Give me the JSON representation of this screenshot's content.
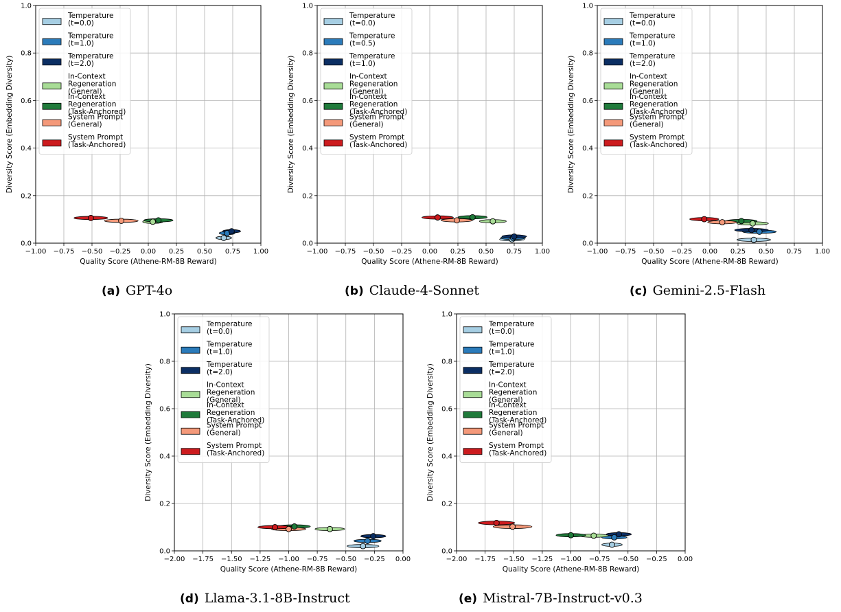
{
  "colors": {
    "temp_low": "#a6cee3",
    "temp_mid": "#2b7bba",
    "temp_high": "#0b2e63",
    "icr_general": "#a8dc96",
    "icr_task": "#1f7a3a",
    "sp_general": "#f4997a",
    "sp_task": "#cc1b1e"
  },
  "captions": [
    {
      "label": "(a)",
      "text": "GPT-4o"
    },
    {
      "label": "(b)",
      "text": "Claude-4-Sonnet"
    },
    {
      "label": "(c)",
      "text": "Gemini-2.5-Flash"
    },
    {
      "label": "(d)",
      "text": "Llama-3.1-8B-Instruct"
    },
    {
      "label": "(e)",
      "text": "Mistral-7B-Instruct-v0.3"
    }
  ],
  "chart_data": [
    {
      "type": "scatter",
      "xlabel": "Quality Score (Athene-RM-8B Reward)",
      "ylabel": "Diversity Score (Embedding Diversity)",
      "xlim": [
        -1.0,
        1.0
      ],
      "ylim": [
        0.0,
        1.0
      ],
      "xticks": [
        "−1.00",
        "−0.75",
        "−0.50",
        "−0.25",
        "0.00",
        "0.25",
        "0.50",
        "0.75",
        "1.00"
      ],
      "xtick_values": [
        -1.0,
        -0.75,
        -0.5,
        -0.25,
        0.0,
        0.25,
        0.5,
        0.75,
        1.0
      ],
      "yticks": [
        "0.0",
        "0.2",
        "0.4",
        "0.6",
        "0.8",
        "1.0"
      ],
      "ytick_values": [
        0.0,
        0.2,
        0.4,
        0.6,
        0.8,
        1.0
      ],
      "grid": true,
      "legend_position": "top-left",
      "series": [
        {
          "name": "Temperature (t=0.0)",
          "color_key": "temp_low",
          "x": 0.67,
          "y": 0.022,
          "xerr": 0.07,
          "yerr": 0.006
        },
        {
          "name": "Temperature (t=1.0)",
          "color_key": "temp_mid",
          "x": 0.7,
          "y": 0.042,
          "xerr": 0.07,
          "yerr": 0.006
        },
        {
          "name": "Temperature (t=2.0)",
          "color_key": "temp_high",
          "x": 0.74,
          "y": 0.05,
          "xerr": 0.08,
          "yerr": 0.006
        },
        {
          "name": "In-Context Regeneration (General)",
          "color_key": "icr_general",
          "x": 0.04,
          "y": 0.09,
          "xerr": 0.09,
          "yerr": 0.007
        },
        {
          "name": "In-Context Regeneration (Task-Anchored)",
          "color_key": "icr_task",
          "x": 0.09,
          "y": 0.096,
          "xerr": 0.13,
          "yerr": 0.007
        },
        {
          "name": "System Prompt (General)",
          "color_key": "sp_general",
          "x": -0.24,
          "y": 0.094,
          "xerr": 0.15,
          "yerr": 0.007
        },
        {
          "name": "System Prompt (Task-Anchored)",
          "color_key": "sp_task",
          "x": -0.51,
          "y": 0.106,
          "xerr": 0.15,
          "yerr": 0.007
        }
      ]
    },
    {
      "type": "scatter",
      "xlabel": "Quality Score (Athene-RM-8B Reward)",
      "ylabel": "Diversity Score (Embedding Diversity)",
      "xlim": [
        -1.0,
        1.0
      ],
      "ylim": [
        0.0,
        1.0
      ],
      "xticks": [
        "−1.00",
        "−0.75",
        "−0.50",
        "−0.25",
        "0.00",
        "0.25",
        "0.50",
        "0.75",
        "1.00"
      ],
      "xtick_values": [
        -1.0,
        -0.75,
        -0.5,
        -0.25,
        0.0,
        0.25,
        0.5,
        0.75,
        1.0
      ],
      "yticks": [
        "0.0",
        "0.2",
        "0.4",
        "0.6",
        "0.8",
        "1.0"
      ],
      "ytick_values": [
        0.0,
        0.2,
        0.4,
        0.6,
        0.8,
        1.0
      ],
      "grid": true,
      "legend_position": "top-left",
      "series": [
        {
          "name": "Temperature (t=0.0)",
          "color_key": "temp_low",
          "x": 0.73,
          "y": 0.016,
          "xerr": 0.11,
          "yerr": 0.005
        },
        {
          "name": "Temperature (t=0.5)",
          "color_key": "temp_mid",
          "x": 0.74,
          "y": 0.022,
          "xerr": 0.11,
          "yerr": 0.005
        },
        {
          "name": "Temperature (t=1.0)",
          "color_key": "temp_high",
          "x": 0.75,
          "y": 0.028,
          "xerr": 0.11,
          "yerr": 0.005
        },
        {
          "name": "In-Context Regeneration (General)",
          "color_key": "icr_general",
          "x": 0.56,
          "y": 0.092,
          "xerr": 0.12,
          "yerr": 0.007
        },
        {
          "name": "In-Context Regeneration (Task-Anchored)",
          "color_key": "icr_task",
          "x": 0.38,
          "y": 0.109,
          "xerr": 0.13,
          "yerr": 0.007
        },
        {
          "name": "System Prompt (General)",
          "color_key": "sp_general",
          "x": 0.24,
          "y": 0.096,
          "xerr": 0.14,
          "yerr": 0.007
        },
        {
          "name": "System Prompt (Task-Anchored)",
          "color_key": "sp_task",
          "x": 0.07,
          "y": 0.108,
          "xerr": 0.14,
          "yerr": 0.007
        }
      ]
    },
    {
      "type": "scatter",
      "xlabel": "Quality Score (Athene-RM-8B Reward)",
      "ylabel": "Diversity Score (Embedding Diversity)",
      "xlim": [
        -1.0,
        1.0
      ],
      "ylim": [
        0.0,
        1.0
      ],
      "xticks": [
        "−1.00",
        "−0.75",
        "−0.50",
        "−0.25",
        "0.00",
        "0.25",
        "0.50",
        "0.75",
        "1.00"
      ],
      "xtick_values": [
        -1.0,
        -0.75,
        -0.5,
        -0.25,
        0.0,
        0.25,
        0.5,
        0.75,
        1.0
      ],
      "yticks": [
        "0.0",
        "0.2",
        "0.4",
        "0.6",
        "0.8",
        "1.0"
      ],
      "ytick_values": [
        0.0,
        0.2,
        0.4,
        0.6,
        0.8,
        1.0
      ],
      "grid": true,
      "legend_position": "top-left",
      "series": [
        {
          "name": "Temperature (t=0.0)",
          "color_key": "temp_low",
          "x": 0.39,
          "y": 0.014,
          "xerr": 0.15,
          "yerr": 0.005
        },
        {
          "name": "Temperature (t=1.0)",
          "color_key": "temp_mid",
          "x": 0.44,
          "y": 0.048,
          "xerr": 0.15,
          "yerr": 0.006
        },
        {
          "name": "Temperature (t=2.0)",
          "color_key": "temp_high",
          "x": 0.37,
          "y": 0.055,
          "xerr": 0.15,
          "yerr": 0.006
        },
        {
          "name": "In-Context Regeneration (General)",
          "color_key": "icr_general",
          "x": 0.38,
          "y": 0.083,
          "xerr": 0.14,
          "yerr": 0.007
        },
        {
          "name": "In-Context Regeneration (Task-Anchored)",
          "color_key": "icr_task",
          "x": 0.28,
          "y": 0.093,
          "xerr": 0.14,
          "yerr": 0.007
        },
        {
          "name": "System Prompt (General)",
          "color_key": "sp_general",
          "x": 0.11,
          "y": 0.088,
          "xerr": 0.13,
          "yerr": 0.007
        },
        {
          "name": "System Prompt (Task-Anchored)",
          "color_key": "sp_task",
          "x": -0.05,
          "y": 0.101,
          "xerr": 0.13,
          "yerr": 0.007
        }
      ]
    },
    {
      "type": "scatter",
      "xlabel": "Quality Score (Athene-RM-8B Reward)",
      "ylabel": "Diversity Score (Embedding Diversity)",
      "xlim": [
        -2.0,
        0.0
      ],
      "ylim": [
        0.0,
        1.0
      ],
      "xticks": [
        "−2.00",
        "−1.75",
        "−1.50",
        "−1.25",
        "−1.00",
        "−0.75",
        "−0.50",
        "−0.25",
        "0.00"
      ],
      "xtick_values": [
        -2.0,
        -1.75,
        -1.5,
        -1.25,
        -1.0,
        -0.75,
        -0.5,
        -0.25,
        0.0
      ],
      "yticks": [
        "0.0",
        "0.2",
        "0.4",
        "0.6",
        "0.8",
        "1.0"
      ],
      "ytick_values": [
        0.0,
        0.2,
        0.4,
        0.6,
        0.8,
        1.0
      ],
      "grid": true,
      "legend_position": "top-left",
      "series": [
        {
          "name": "Temperature (t=0.0)",
          "color_key": "temp_low",
          "x": -0.35,
          "y": 0.02,
          "xerr": 0.14,
          "yerr": 0.005
        },
        {
          "name": "Temperature (t=1.0)",
          "color_key": "temp_mid",
          "x": -0.31,
          "y": 0.042,
          "xerr": 0.12,
          "yerr": 0.006
        },
        {
          "name": "Temperature (t=2.0)",
          "color_key": "temp_high",
          "x": -0.26,
          "y": 0.062,
          "xerr": 0.11,
          "yerr": 0.006
        },
        {
          "name": "In-Context Regeneration (General)",
          "color_key": "icr_general",
          "x": -0.64,
          "y": 0.092,
          "xerr": 0.13,
          "yerr": 0.007
        },
        {
          "name": "In-Context Regeneration (Task-Anchored)",
          "color_key": "icr_task",
          "x": -0.95,
          "y": 0.103,
          "xerr": 0.14,
          "yerr": 0.007
        },
        {
          "name": "System Prompt (General)",
          "color_key": "sp_general",
          "x": -1.0,
          "y": 0.092,
          "xerr": 0.15,
          "yerr": 0.007
        },
        {
          "name": "System Prompt (Task-Anchored)",
          "color_key": "sp_task",
          "x": -1.12,
          "y": 0.1,
          "xerr": 0.15,
          "yerr": 0.007
        }
      ]
    },
    {
      "type": "scatter",
      "xlabel": "Quality Score (Athene-RM-8B Reward)",
      "ylabel": "Diversity Score (Embedding Diversity)",
      "xlim": [
        -2.0,
        0.0
      ],
      "ylim": [
        0.0,
        1.0
      ],
      "xticks": [
        "−2.00",
        "−1.75",
        "−1.50",
        "−1.25",
        "−1.00",
        "−0.75",
        "−0.50",
        "−0.25",
        "0.00"
      ],
      "xtick_values": [
        -2.0,
        -1.75,
        -1.5,
        -1.25,
        -1.0,
        -0.75,
        -0.5,
        -0.25,
        0.0
      ],
      "yticks": [
        "0.0",
        "0.2",
        "0.4",
        "0.6",
        "0.8",
        "1.0"
      ],
      "ytick_values": [
        0.0,
        0.2,
        0.4,
        0.6,
        0.8,
        1.0
      ],
      "grid": true,
      "legend_position": "top-left",
      "series": [
        {
          "name": "Temperature (t=0.0)",
          "color_key": "temp_low",
          "x": -0.64,
          "y": 0.026,
          "xerr": 0.09,
          "yerr": 0.005
        },
        {
          "name": "Temperature (t=1.0)",
          "color_key": "temp_mid",
          "x": -0.62,
          "y": 0.057,
          "xerr": 0.11,
          "yerr": 0.006
        },
        {
          "name": "Temperature (t=2.0)",
          "color_key": "temp_high",
          "x": -0.58,
          "y": 0.07,
          "xerr": 0.11,
          "yerr": 0.006
        },
        {
          "name": "In-Context Regeneration (General)",
          "color_key": "icr_general",
          "x": -0.8,
          "y": 0.064,
          "xerr": 0.13,
          "yerr": 0.006
        },
        {
          "name": "In-Context Regeneration (Task-Anchored)",
          "color_key": "icr_task",
          "x": -1.0,
          "y": 0.066,
          "xerr": 0.13,
          "yerr": 0.006
        },
        {
          "name": "System Prompt (General)",
          "color_key": "sp_general",
          "x": -1.51,
          "y": 0.102,
          "xerr": 0.17,
          "yerr": 0.008
        },
        {
          "name": "System Prompt (Task-Anchored)",
          "color_key": "sp_task",
          "x": -1.65,
          "y": 0.118,
          "xerr": 0.16,
          "yerr": 0.008
        }
      ]
    }
  ]
}
